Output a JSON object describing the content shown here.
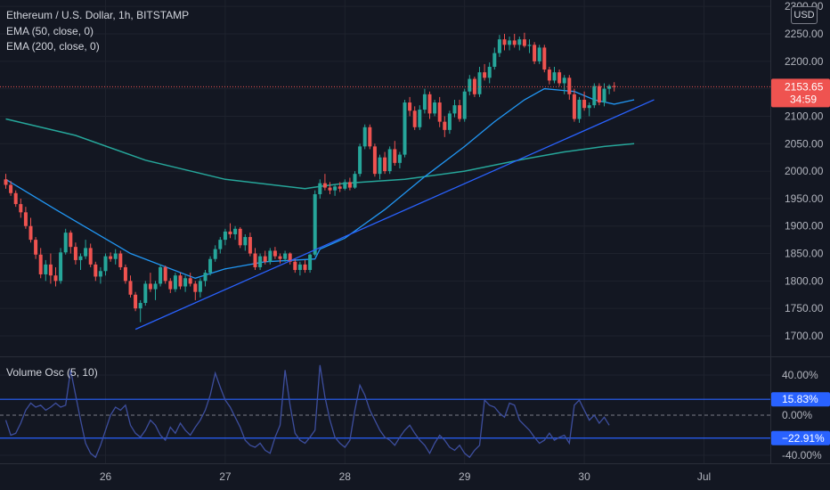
{
  "header": {
    "symbol_line": "Ethereum / U.S. Dollar, 1h, BITSTAMP",
    "ema50_label": "EMA (50, close, 0)",
    "ema200_label": "EMA (200, close, 0)",
    "currency": "USD"
  },
  "price_badge": {
    "price": "2153.65",
    "countdown": "34:59"
  },
  "oscillator": {
    "label": "Volume Osc (5, 10)",
    "upper_badge": "15.83%",
    "lower_badge": "−22.91%"
  },
  "colors": {
    "background": "#131722",
    "grid": "#1e222d",
    "up": "#26a69a",
    "down": "#ef5350",
    "ema50": "#2196f3",
    "ema200": "#26a69a",
    "trendline": "#2962ff",
    "osc": "#3d4e9e",
    "osc_level": "#2962ff",
    "price_line": "#ef5350"
  },
  "chart_data": [
    {
      "type": "candlestick",
      "title": "Ethereum / U.S. Dollar, 1h, BITSTAMP",
      "ylim": [
        1670,
        2310
      ],
      "y_ticks": [
        1700,
        1750,
        1800,
        1850,
        1900,
        1950,
        2000,
        2050,
        2100,
        2150,
        2200,
        2250,
        2300
      ],
      "y_tick_labels": [
        "1700.00",
        "1750.00",
        "1800.00",
        "1850.00",
        "1900.00",
        "1950.00",
        "2000.00",
        "2050.00",
        "2100.00",
        "2150.00",
        "2200.00",
        "2250.00",
        "2300.00"
      ],
      "x_ticks": [
        {
          "label": "26",
          "index": 20
        },
        {
          "label": "27",
          "index": 44
        },
        {
          "label": "28",
          "index": 68
        },
        {
          "label": "29",
          "index": 92
        },
        {
          "label": "30",
          "index": 116
        },
        {
          "label": "Jul",
          "index": 140
        }
      ],
      "candles": [
        [
          1985,
          1995,
          1968,
          1975
        ],
        [
          1975,
          1982,
          1955,
          1960
        ],
        [
          1960,
          1965,
          1935,
          1940
        ],
        [
          1940,
          1950,
          1915,
          1925
        ],
        [
          1925,
          1935,
          1895,
          1900
        ],
        [
          1900,
          1915,
          1870,
          1875
        ],
        [
          1875,
          1880,
          1840,
          1848
        ],
        [
          1848,
          1860,
          1805,
          1812
        ],
        [
          1812,
          1838,
          1800,
          1830
        ],
        [
          1830,
          1850,
          1795,
          1810
        ],
        [
          1810,
          1825,
          1790,
          1800
        ],
        [
          1800,
          1860,
          1795,
          1852
        ],
        [
          1852,
          1895,
          1848,
          1888
        ],
        [
          1888,
          1892,
          1850,
          1862
        ],
        [
          1862,
          1870,
          1830,
          1838
        ],
        [
          1838,
          1850,
          1820,
          1845
        ],
        [
          1845,
          1875,
          1840,
          1860
        ],
        [
          1860,
          1868,
          1825,
          1830
        ],
        [
          1830,
          1835,
          1800,
          1808
        ],
        [
          1808,
          1825,
          1795,
          1818
        ],
        [
          1818,
          1850,
          1810,
          1845
        ],
        [
          1845,
          1852,
          1835,
          1840
        ],
        [
          1840,
          1858,
          1830,
          1850
        ],
        [
          1850,
          1855,
          1820,
          1825
        ],
        [
          1825,
          1830,
          1795,
          1800
        ],
        [
          1800,
          1810,
          1770,
          1775
        ],
        [
          1775,
          1780,
          1745,
          1750
        ],
        [
          1750,
          1765,
          1725,
          1760
        ],
        [
          1760,
          1800,
          1755,
          1795
        ],
        [
          1795,
          1815,
          1780,
          1785
        ],
        [
          1785,
          1800,
          1765,
          1795
        ],
        [
          1795,
          1830,
          1790,
          1825
        ],
        [
          1825,
          1828,
          1795,
          1800
        ],
        [
          1800,
          1805,
          1778,
          1785
        ],
        [
          1785,
          1815,
          1780,
          1810
        ],
        [
          1810,
          1815,
          1785,
          1790
        ],
        [
          1790,
          1810,
          1780,
          1805
        ],
        [
          1805,
          1815,
          1790,
          1795
        ],
        [
          1795,
          1800,
          1765,
          1780
        ],
        [
          1780,
          1805,
          1770,
          1800
        ],
        [
          1800,
          1820,
          1790,
          1815
        ],
        [
          1815,
          1845,
          1810,
          1840
        ],
        [
          1840,
          1865,
          1835,
          1858
        ],
        [
          1858,
          1880,
          1850,
          1875
        ],
        [
          1875,
          1895,
          1865,
          1890
        ],
        [
          1890,
          1905,
          1878,
          1885
        ],
        [
          1885,
          1900,
          1875,
          1895
        ],
        [
          1895,
          1898,
          1860,
          1865
        ],
        [
          1865,
          1885,
          1855,
          1880
        ],
        [
          1880,
          1888,
          1845,
          1850
        ],
        [
          1850,
          1860,
          1820,
          1825
        ],
        [
          1825,
          1850,
          1820,
          1845
        ],
        [
          1845,
          1855,
          1830,
          1835
        ],
        [
          1835,
          1860,
          1830,
          1855
        ],
        [
          1855,
          1862,
          1840,
          1845
        ],
        [
          1845,
          1850,
          1832,
          1840
        ],
        [
          1840,
          1855,
          1835,
          1850
        ],
        [
          1850,
          1852,
          1830,
          1835
        ],
        [
          1835,
          1840,
          1815,
          1820
        ],
        [
          1820,
          1835,
          1810,
          1830
        ],
        [
          1830,
          1838,
          1815,
          1820
        ],
        [
          1820,
          1850,
          1815,
          1848
        ],
        [
          1848,
          1965,
          1845,
          1958
        ],
        [
          1958,
          1985,
          1950,
          1978
        ],
        [
          1978,
          1995,
          1965,
          1970
        ],
        [
          1970,
          1980,
          1958,
          1965
        ],
        [
          1965,
          1975,
          1955,
          1972
        ],
        [
          1972,
          1980,
          1962,
          1968
        ],
        [
          1968,
          1985,
          1965,
          1980
        ],
        [
          1980,
          1988,
          1965,
          1970
        ],
        [
          1970,
          2000,
          1968,
          1995
        ],
        [
          1995,
          2050,
          1990,
          2045
        ],
        [
          2045,
          2085,
          2040,
          2080
        ],
        [
          2080,
          2085,
          2040,
          2045
        ],
        [
          2045,
          2050,
          1990,
          1995
        ],
        [
          1995,
          2030,
          1985,
          2025
        ],
        [
          2025,
          2035,
          1995,
          2000
        ],
        [
          2000,
          2045,
          1995,
          2040
        ],
        [
          2040,
          2055,
          2010,
          2015
        ],
        [
          2015,
          2035,
          2005,
          2030
        ],
        [
          2030,
          2130,
          2025,
          2125
        ],
        [
          2125,
          2135,
          2100,
          2110
        ],
        [
          2110,
          2118,
          2075,
          2080
        ],
        [
          2080,
          2120,
          2075,
          2112
        ],
        [
          2112,
          2150,
          2105,
          2140
        ],
        [
          2140,
          2145,
          2095,
          2105
        ],
        [
          2105,
          2130,
          2100,
          2125
        ],
        [
          2125,
          2135,
          2080,
          2090
        ],
        [
          2090,
          2100,
          2062,
          2075
        ],
        [
          2075,
          2110,
          2068,
          2105
        ],
        [
          2105,
          2130,
          2098,
          2120
        ],
        [
          2120,
          2130,
          2090,
          2095
        ],
        [
          2095,
          2150,
          2090,
          2145
        ],
        [
          2145,
          2175,
          2138,
          2168
        ],
        [
          2168,
          2172,
          2135,
          2140
        ],
        [
          2140,
          2190,
          2135,
          2180
        ],
        [
          2180,
          2195,
          2165,
          2170
        ],
        [
          2170,
          2198,
          2160,
          2190
        ],
        [
          2190,
          2225,
          2185,
          2215
        ],
        [
          2215,
          2248,
          2208,
          2240
        ],
        [
          2240,
          2250,
          2220,
          2230
        ],
        [
          2230,
          2245,
          2220,
          2238
        ],
        [
          2238,
          2250,
          2225,
          2230
        ],
        [
          2230,
          2245,
          2220,
          2240
        ],
        [
          2240,
          2252,
          2225,
          2228
        ],
        [
          2228,
          2240,
          2215,
          2230
        ],
        [
          2230,
          2235,
          2195,
          2200
        ],
        [
          2200,
          2230,
          2195,
          2225
        ],
        [
          2225,
          2230,
          2180,
          2185
        ],
        [
          2185,
          2190,
          2158,
          2165
        ],
        [
          2165,
          2190,
          2160,
          2180
        ],
        [
          2180,
          2185,
          2155,
          2160
        ],
        [
          2160,
          2175,
          2140,
          2170
        ],
        [
          2170,
          2175,
          2130,
          2140
        ],
        [
          2140,
          2150,
          2090,
          2095
        ],
        [
          2095,
          2135,
          2088,
          2130
        ],
        [
          2130,
          2145,
          2110,
          2115
        ],
        [
          2115,
          2125,
          2100,
          2120
        ],
        [
          2120,
          2160,
          2115,
          2155
        ],
        [
          2155,
          2160,
          2120,
          2125
        ],
        [
          2125,
          2160,
          2118,
          2150
        ],
        [
          2150,
          2158,
          2140,
          2155
        ],
        [
          2155,
          2162,
          2145,
          2153.65
        ]
      ],
      "ema50": [
        [
          0,
          1985
        ],
        [
          10,
          1930
        ],
        [
          25,
          1850
        ],
        [
          38,
          1805
        ],
        [
          44,
          1822
        ],
        [
          52,
          1835
        ],
        [
          62,
          1840
        ],
        [
          63,
          1858
        ],
        [
          68,
          1878
        ],
        [
          76,
          1930
        ],
        [
          84,
          1990
        ],
        [
          92,
          2045
        ],
        [
          98,
          2090
        ],
        [
          104,
          2130
        ],
        [
          108,
          2150
        ],
        [
          114,
          2145
        ],
        [
          118,
          2130
        ],
        [
          122,
          2122
        ],
        [
          125,
          2128
        ],
        [
          126,
          2130
        ]
      ],
      "ema200": [
        [
          0,
          2095
        ],
        [
          14,
          2065
        ],
        [
          28,
          2020
        ],
        [
          44,
          1985
        ],
        [
          60,
          1968
        ],
        [
          63,
          1972
        ],
        [
          68,
          1978
        ],
        [
          80,
          1985
        ],
        [
          92,
          2000
        ],
        [
          104,
          2022
        ],
        [
          112,
          2035
        ],
        [
          120,
          2045
        ],
        [
          126,
          2050
        ]
      ],
      "trendline": [
        [
          26,
          1712
        ],
        [
          130,
          2130
        ]
      ],
      "current_price": 2153.65
    },
    {
      "type": "line",
      "title": "Volume Osc (5, 10)",
      "ylim": [
        -48,
        53
      ],
      "y_tick_labels": [
        "40.00%",
        "0.00%",
        "-40.00%"
      ],
      "levels": [
        15.83,
        -22.91
      ],
      "values": [
        -5,
        -20,
        -18,
        -8,
        5,
        12,
        8,
        10,
        5,
        8,
        12,
        8,
        10,
        45,
        20,
        -5,
        -28,
        -38,
        -42,
        -30,
        -15,
        0,
        8,
        5,
        10,
        -10,
        -18,
        -22,
        -15,
        -5,
        -10,
        -20,
        -25,
        -12,
        -18,
        -8,
        -15,
        -20,
        -12,
        -5,
        5,
        20,
        42,
        28,
        15,
        8,
        -2,
        -12,
        -25,
        -30,
        -32,
        -28,
        -35,
        -38,
        -22,
        -10,
        45,
        10,
        -18,
        -25,
        -28,
        -22,
        -15,
        50,
        18,
        -5,
        -22,
        -28,
        -32,
        -25,
        5,
        30,
        20,
        5,
        -5,
        -15,
        -22,
        -25,
        -30,
        -22,
        -15,
        -10,
        -18,
        -25,
        -30,
        -38,
        -28,
        -20,
        -25,
        -32,
        -35,
        -30,
        -38,
        -42,
        -35,
        -30,
        15,
        10,
        8,
        2,
        -2,
        12,
        10,
        -5,
        -10,
        -15,
        -22,
        -28,
        -25,
        -18,
        -25,
        -22,
        -20,
        -28,
        10,
        15,
        5,
        -5,
        0,
        -8,
        -2,
        -10
      ]
    }
  ]
}
